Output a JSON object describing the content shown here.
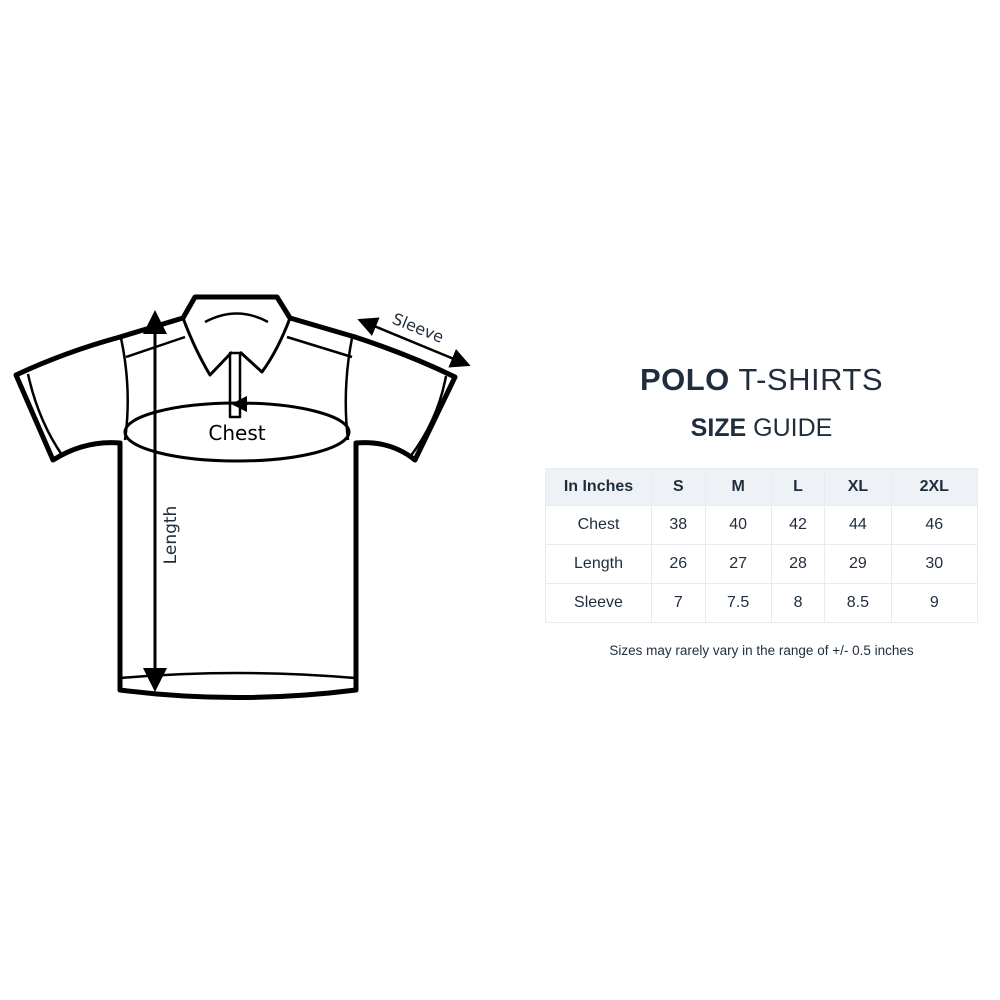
{
  "diagram": {
    "labels": {
      "chest": "Chest",
      "length": "Length",
      "sleeve": "Sleeve"
    },
    "line_color": "#000000",
    "label_color": "#1f2d3d"
  },
  "heading": {
    "line1_bold": "POLO",
    "line1_light": "T-SHIRTS",
    "line2_bold": "SIZE",
    "line2_light": "GUIDE"
  },
  "size_table": {
    "header": [
      "In Inches",
      "S",
      "M",
      "L",
      "XL",
      "2XL"
    ],
    "rows": [
      [
        "Chest",
        "38",
        "40",
        "42",
        "44",
        "46"
      ],
      [
        "Length",
        "26",
        "27",
        "28",
        "29",
        "30"
      ],
      [
        "Sleeve",
        "7",
        "7.5",
        "8",
        "8.5",
        "9"
      ]
    ],
    "header_bg": "#eef2f6"
  },
  "note": "Sizes may rarely vary in the range of +/- 0.5 inches"
}
